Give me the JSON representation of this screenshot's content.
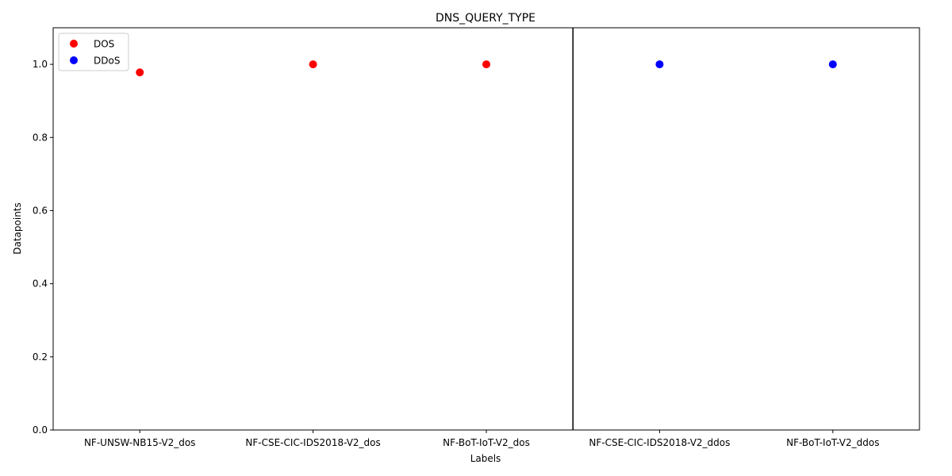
{
  "chart_data": {
    "type": "scatter",
    "title": "DNS_QUERY_TYPE",
    "xlabel": "Labels",
    "ylabel": "Datapoints",
    "categories": [
      "NF-UNSW-NB15-V2_dos",
      "NF-CSE-CIC-IDS2018-V2_dos",
      "NF-BoT-IoT-V2_dos",
      "NF-CSE-CIC-IDS2018-V2_ddos",
      "NF-BoT-IoT-V2_ddos"
    ],
    "ylim": [
      0,
      1.1
    ],
    "yticks": [
      "0.0",
      "0.2",
      "0.4",
      "0.6",
      "0.8",
      "1.0"
    ],
    "series": [
      {
        "name": "DOS",
        "color": "#ff0000",
        "points": [
          {
            "x": "NF-UNSW-NB15-V2_dos",
            "y": 0.978
          },
          {
            "x": "NF-CSE-CIC-IDS2018-V2_dos",
            "y": 1.0
          },
          {
            "x": "NF-BoT-IoT-V2_dos",
            "y": 1.0
          }
        ]
      },
      {
        "name": "DDoS",
        "color": "#0000ff",
        "points": [
          {
            "x": "NF-CSE-CIC-IDS2018-V2_ddos",
            "y": 1.0
          },
          {
            "x": "NF-BoT-IoT-V2_ddos",
            "y": 1.0
          }
        ]
      }
    ],
    "vline_between": [
      "NF-BoT-IoT-V2_dos",
      "NF-CSE-CIC-IDS2018-V2_ddos"
    ],
    "legend_loc": "upper left",
    "grid": false
  }
}
